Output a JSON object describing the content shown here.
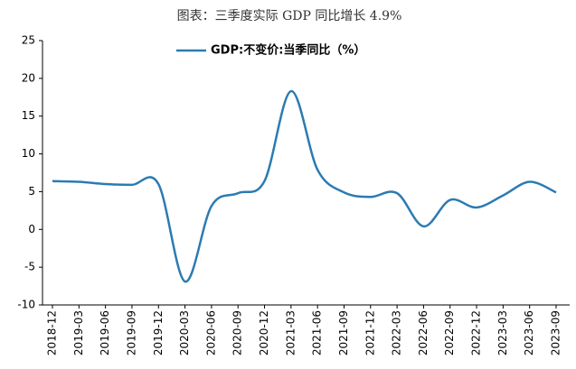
{
  "chart_data": {
    "type": "line",
    "title": "图表：三季度实际 GDP 同比增长 4.9%",
    "categories": [
      "2018-12",
      "2019-03",
      "2019-06",
      "2019-09",
      "2019-12",
      "2020-03",
      "2020-06",
      "2020-09",
      "2020-12",
      "2021-03",
      "2021-06",
      "2021-09",
      "2021-12",
      "2022-03",
      "2022-06",
      "2022-09",
      "2022-12",
      "2023-03",
      "2023-06",
      "2023-09"
    ],
    "series": [
      {
        "name": "GDP:不变价:当季同比（%）",
        "color": "#2b7bb2",
        "values": [
          6.4,
          6.3,
          6.0,
          5.9,
          6.0,
          -6.9,
          3.1,
          4.8,
          6.4,
          18.3,
          7.9,
          4.9,
          4.3,
          4.8,
          0.4,
          3.9,
          2.9,
          4.5,
          6.3,
          4.9
        ]
      }
    ],
    "ylim": [
      -10,
      25
    ],
    "yticks": [
      -10,
      -5,
      0,
      5,
      10,
      15,
      20,
      25
    ]
  }
}
